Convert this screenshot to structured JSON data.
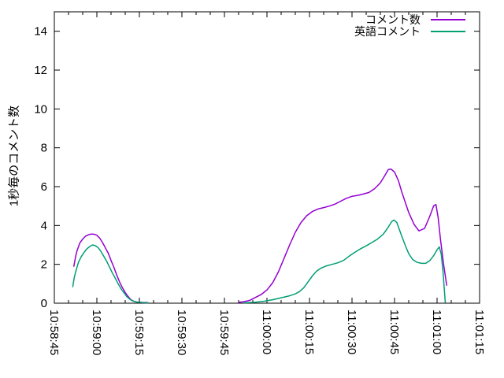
{
  "chart_data": {
    "type": "line",
    "title": "",
    "xlabel": "",
    "ylabel": "1秒毎のコメント数",
    "ylim": [
      0,
      15
    ],
    "y_ticks": [
      0,
      2,
      4,
      6,
      8,
      10,
      12,
      14
    ],
    "x_range_seconds": [
      0,
      150
    ],
    "x_tick_interval_seconds": 15,
    "x_minor_tick_seconds": 5,
    "x_tick_labels": [
      "10:58:45",
      "10:59:00",
      "10:59:15",
      "10:59:30",
      "10:59:45",
      "11:00:00",
      "11:00:15",
      "11:00:30",
      "11:00:45",
      "11:01:00",
      "11:01:15"
    ],
    "grid": false,
    "legend_position": "top-right-inside",
    "axis_color": "#000000",
    "background_color": "#ffffff",
    "series": [
      {
        "name": "コメント数",
        "color": "#9400d3",
        "segments": [
          [
            [
              6.9,
              1.9
            ],
            [
              7.5,
              2.4
            ],
            [
              8,
              2.7
            ],
            [
              9,
              3.1
            ],
            [
              10,
              3.3
            ],
            [
              11,
              3.45
            ],
            [
              12,
              3.52
            ],
            [
              13,
              3.56
            ],
            [
              14,
              3.55
            ],
            [
              15,
              3.5
            ],
            [
              16,
              3.35
            ],
            [
              17,
              3.12
            ],
            [
              18,
              2.85
            ],
            [
              19,
              2.58
            ],
            [
              20,
              2.2
            ],
            [
              21,
              1.85
            ],
            [
              22,
              1.45
            ],
            [
              23,
              1.1
            ],
            [
              24,
              0.8
            ],
            [
              25,
              0.55
            ],
            [
              26,
              0.35
            ],
            [
              27,
              0.18
            ],
            [
              28,
              0.1
            ],
            [
              29,
              0.06
            ],
            [
              31,
              0.04
            ],
            [
              33,
              0.03
            ]
          ],
          [
            [
              65,
              0.04
            ],
            [
              67,
              0.08
            ],
            [
              69,
              0.15
            ],
            [
              71,
              0.3
            ],
            [
              73,
              0.45
            ],
            [
              75,
              0.68
            ],
            [
              77,
              1.05
            ],
            [
              79,
              1.6
            ],
            [
              81,
              2.3
            ],
            [
              83,
              3.0
            ],
            [
              85,
              3.65
            ],
            [
              87,
              4.15
            ],
            [
              89,
              4.5
            ],
            [
              91,
              4.72
            ],
            [
              93,
              4.85
            ],
            [
              95,
              4.92
            ],
            [
              97,
              5.0
            ],
            [
              99,
              5.1
            ],
            [
              101,
              5.25
            ],
            [
              103,
              5.4
            ],
            [
              105,
              5.5
            ],
            [
              107,
              5.55
            ],
            [
              109,
              5.62
            ],
            [
              111,
              5.7
            ],
            [
              113,
              5.9
            ],
            [
              115,
              6.2
            ],
            [
              116.5,
              6.55
            ],
            [
              117.8,
              6.88
            ],
            [
              118.8,
              6.9
            ],
            [
              120,
              6.75
            ],
            [
              121.4,
              6.3
            ],
            [
              122.5,
              5.75
            ],
            [
              124,
              5.1
            ],
            [
              125,
              4.67
            ],
            [
              126.9,
              4.06
            ],
            [
              128.6,
              3.72
            ],
            [
              130.6,
              3.85
            ],
            [
              132.4,
              4.46
            ],
            [
              133.8,
              5.01
            ],
            [
              134.6,
              5.08
            ],
            [
              135.4,
              4.4
            ],
            [
              136.2,
              3.3
            ],
            [
              137.3,
              2.0
            ],
            [
              138.4,
              0.93
            ]
          ]
        ]
      },
      {
        "name": "英語コメント",
        "color": "#009e73",
        "segments": [
          [
            [
              6.5,
              0.85
            ],
            [
              7,
              1.3
            ],
            [
              7.5,
              1.6
            ],
            [
              8.5,
              2.1
            ],
            [
              9.5,
              2.4
            ],
            [
              10.5,
              2.62
            ],
            [
              11.5,
              2.8
            ],
            [
              12.5,
              2.92
            ],
            [
              13.5,
              3.0
            ],
            [
              14.5,
              2.96
            ],
            [
              15.5,
              2.85
            ],
            [
              16.5,
              2.65
            ],
            [
              17.5,
              2.4
            ],
            [
              18.5,
              2.15
            ],
            [
              19.5,
              1.85
            ],
            [
              20.5,
              1.55
            ],
            [
              21.5,
              1.28
            ],
            [
              22.5,
              1.0
            ],
            [
              23.5,
              0.75
            ],
            [
              24.5,
              0.55
            ],
            [
              25.5,
              0.35
            ],
            [
              26.5,
              0.22
            ],
            [
              27.5,
              0.12
            ],
            [
              29,
              0.06
            ],
            [
              31,
              0.03
            ],
            [
              33,
              0.02
            ]
          ],
          [
            [
              67,
              0.02
            ],
            [
              71,
              0.05
            ],
            [
              74,
              0.1
            ],
            [
              77,
              0.18
            ],
            [
              80,
              0.28
            ],
            [
              83,
              0.38
            ],
            [
              85,
              0.48
            ],
            [
              86.5,
              0.6
            ],
            [
              88,
              0.8
            ],
            [
              89.5,
              1.1
            ],
            [
              91,
              1.4
            ],
            [
              92.5,
              1.65
            ],
            [
              94,
              1.8
            ],
            [
              96,
              1.92
            ],
            [
              98,
              2.0
            ],
            [
              100,
              2.08
            ],
            [
              102,
              2.2
            ],
            [
              104,
              2.42
            ],
            [
              106,
              2.62
            ],
            [
              108,
              2.8
            ],
            [
              110,
              2.95
            ],
            [
              112,
              3.12
            ],
            [
              114,
              3.3
            ],
            [
              116,
              3.55
            ],
            [
              117.5,
              3.85
            ],
            [
              119,
              4.2
            ],
            [
              119.8,
              4.28
            ],
            [
              120.8,
              4.15
            ],
            [
              121.8,
              3.75
            ],
            [
              122.8,
              3.35
            ],
            [
              124,
              2.9
            ],
            [
              125,
              2.55
            ],
            [
              126.4,
              2.25
            ],
            [
              128,
              2.1
            ],
            [
              129.5,
              2.05
            ],
            [
              131,
              2.05
            ],
            [
              132.5,
              2.2
            ],
            [
              133.8,
              2.45
            ],
            [
              135,
              2.75
            ],
            [
              135.8,
              2.9
            ],
            [
              136.5,
              2.5
            ],
            [
              137.1,
              1.6
            ],
            [
              137.6,
              0.6
            ],
            [
              137.9,
              0.05
            ]
          ]
        ]
      }
    ]
  }
}
